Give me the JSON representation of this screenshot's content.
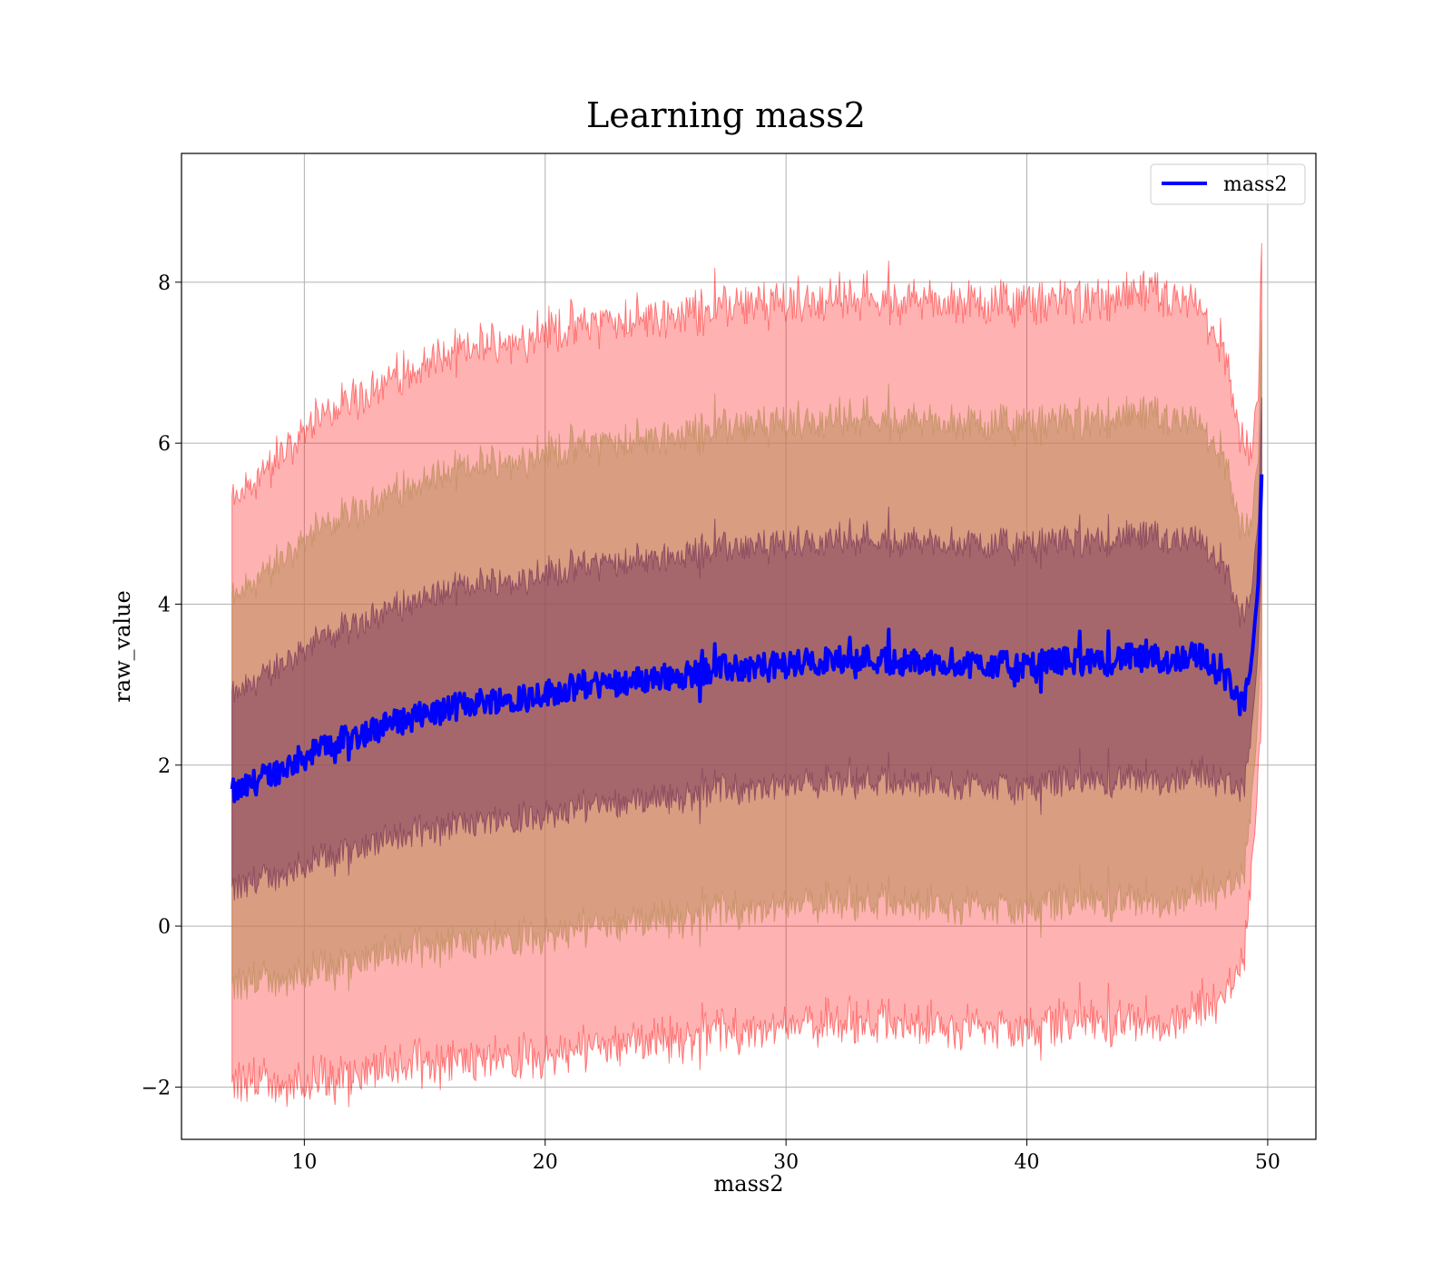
{
  "chart_data": {
    "type": "line",
    "title": "Learning mass2",
    "xlabel": "mass2",
    "ylabel": "raw_value",
    "xlim": [
      4.9,
      52.0
    ],
    "ylim": [
      -2.65,
      9.6
    ],
    "x_ticks": [
      10,
      20,
      30,
      40,
      50
    ],
    "y_ticks": [
      -2,
      0,
      2,
      4,
      6,
      8
    ],
    "grid": true,
    "legend_position": "top-right",
    "colors": {
      "mean_line": "#0000ff",
      "band_outer": "#ff0000",
      "band_middle": "#bf8040",
      "band_inner": "#7d3f5f",
      "grid": "#b0b0b0"
    },
    "bands": [
      {
        "sigma": 3,
        "color": "#ff0000",
        "opacity": 0.3
      },
      {
        "sigma": 2,
        "color": "#c09060",
        "opacity": 0.6
      },
      {
        "sigma": 1,
        "color": "#7a3a5a",
        "opacity": 0.55
      }
    ],
    "series": [
      {
        "name": "mass2",
        "x": [
          7.0,
          7.5,
          8.0,
          9.0,
          10.0,
          11.0,
          12.0,
          13.0,
          14.0,
          15.0,
          16.0,
          17.0,
          18.0,
          19.0,
          20.0,
          21.0,
          22.0,
          23.0,
          24.0,
          25.0,
          26.0,
          27.0,
          28.0,
          29.0,
          30.0,
          31.0,
          32.0,
          33.0,
          34.0,
          35.0,
          36.0,
          37.0,
          38.0,
          39.0,
          40.0,
          41.0,
          42.0,
          43.0,
          44.0,
          45.0,
          46.0,
          47.0,
          48.0,
          48.5,
          49.0,
          49.3,
          49.6,
          49.75
        ],
        "y": [
          1.65,
          1.7,
          1.8,
          1.95,
          2.1,
          2.25,
          2.35,
          2.45,
          2.55,
          2.62,
          2.7,
          2.78,
          2.82,
          2.85,
          2.9,
          2.95,
          3.0,
          3.03,
          3.06,
          3.1,
          3.13,
          3.2,
          3.2,
          3.22,
          3.25,
          3.28,
          3.3,
          3.35,
          3.3,
          3.28,
          3.27,
          3.28,
          3.25,
          3.25,
          3.2,
          3.3,
          3.3,
          3.25,
          3.35,
          3.3,
          3.3,
          3.4,
          3.15,
          3.0,
          2.7,
          3.2,
          4.2,
          5.6
        ],
        "std": [
          1.2,
          1.22,
          1.25,
          1.3,
          1.35,
          1.38,
          1.4,
          1.42,
          1.43,
          1.45,
          1.46,
          1.47,
          1.48,
          1.49,
          1.5,
          1.5,
          1.5,
          1.5,
          1.5,
          1.5,
          1.5,
          1.5,
          1.5,
          1.5,
          1.5,
          1.5,
          1.5,
          1.5,
          1.5,
          1.5,
          1.5,
          1.5,
          1.5,
          1.5,
          1.5,
          1.5,
          1.5,
          1.5,
          1.5,
          1.5,
          1.5,
          1.45,
          1.35,
          1.25,
          1.05,
          0.9,
          0.8,
          1.0
        ]
      }
    ]
  }
}
